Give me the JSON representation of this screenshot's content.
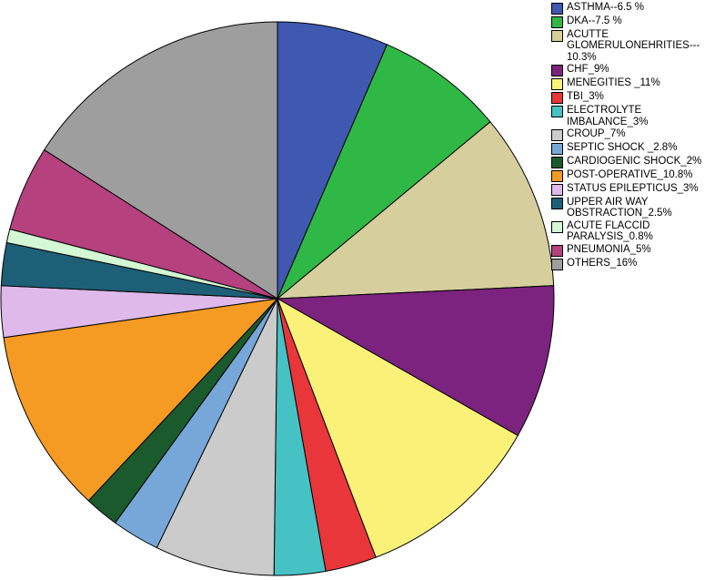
{
  "chart_data": {
    "type": "pie",
    "start_angle_deg": 0,
    "direction": "clockwise",
    "legend_placement": "right",
    "slices": [
      {
        "label": "ASTHMA--6.5 %",
        "value": 6.5,
        "color": "#3F59B1"
      },
      {
        "label": "DKA--7.5 %",
        "value": 7.5,
        "color": "#30B847"
      },
      {
        "label": "ACUTTE\nGLOMERULONEHRITIES---\n10.3%",
        "value": 10.3,
        "color": "#D6CF9D"
      },
      {
        "label": "CHF_9%",
        "value": 9,
        "color": "#7B237E"
      },
      {
        "label": "MENEGITIES _11%",
        "value": 11,
        "color": "#FAF278"
      },
      {
        "label": "TBI_3%",
        "value": 3,
        "color": "#E8363A"
      },
      {
        "label": "ELECTROLYTE\nIMBALANCE_3%",
        "value": 3,
        "color": "#47C2C4"
      },
      {
        "label": "CROUP_7%",
        "value": 7,
        "color": "#CBCBCB"
      },
      {
        "label": "SEPTIC SHOCK _2.8%",
        "value": 2.8,
        "color": "#76A7D8"
      },
      {
        "label": "CARDIOGENIC SHOCK_2%",
        "value": 2,
        "color": "#1A5A2D"
      },
      {
        "label": "POST-OPERATIVE_10.8%",
        "value": 10.8,
        "color": "#F59A22"
      },
      {
        "label": "STATUS EPILEPTICUS_3%",
        "value": 3,
        "color": "#DEB9EA"
      },
      {
        "label": "UPPER AIR WAY\nOBSTRACTION_2.5%",
        "value": 2.5,
        "color": "#1E5F78"
      },
      {
        "label": "ACUTE FLACCID\nPARALYSIS_0.8%",
        "value": 0.8,
        "color": "#D3F8D3"
      },
      {
        "label": "PNEUMONIA_5%",
        "value": 5,
        "color": "#B5417F"
      },
      {
        "label": "OTHERS_16%",
        "value": 16,
        "color": "#9E9E9E"
      }
    ]
  }
}
